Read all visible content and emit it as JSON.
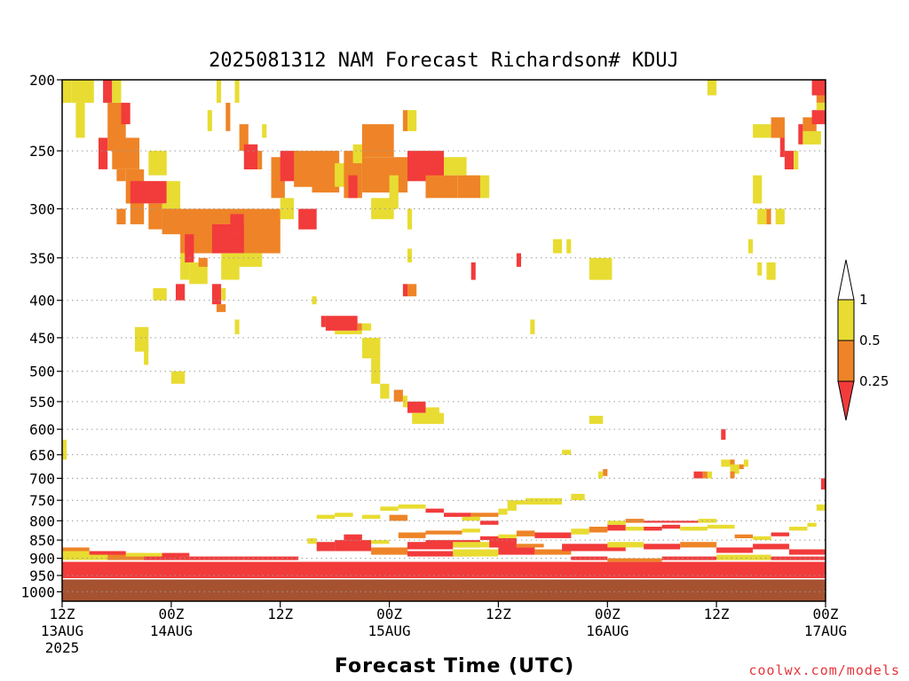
{
  "chart_data": {
    "type": "heatmap",
    "title": "2025081312 NAM Forecast Richardson# KDUJ",
    "xlabel": "Forecast Time (UTC)",
    "ylabel": "",
    "credit": "coolwx.com/models",
    "x_unit": "forecast hour",
    "xlim": [
      0,
      84
    ],
    "y_unit": "hPa",
    "y_scale": "log",
    "ylim": [
      1030,
      200
    ],
    "grid": "dotted horizontal lines at labeled pressure levels",
    "y_ticks": [
      200,
      250,
      300,
      350,
      400,
      450,
      500,
      550,
      600,
      650,
      700,
      750,
      800,
      850,
      900,
      950,
      1000
    ],
    "y_tick_labels": [
      "200",
      "250",
      "300",
      "350",
      "400",
      "450",
      "500",
      "550",
      "600",
      "650",
      "700",
      "750",
      "800",
      "850",
      "900",
      "950",
      "1000"
    ],
    "x_ticks": [
      {
        "hour": 0,
        "label1": "12Z",
        "label2": "13AUG",
        "label3": "2025"
      },
      {
        "hour": 12,
        "label1": "00Z",
        "label2": "14AUG",
        "label3": ""
      },
      {
        "hour": 24,
        "label1": "12Z",
        "label2": "",
        "label3": ""
      },
      {
        "hour": 36,
        "label1": "00Z",
        "label2": "15AUG",
        "label3": ""
      },
      {
        "hour": 48,
        "label1": "12Z",
        "label2": "",
        "label3": ""
      },
      {
        "hour": 60,
        "label1": "00Z",
        "label2": "16AUG",
        "label3": ""
      },
      {
        "hour": 72,
        "label1": "12Z",
        "label2": "",
        "label3": ""
      },
      {
        "hour": 84,
        "label1": "00Z",
        "label2": "17AUG",
        "label3": ""
      }
    ],
    "legend": {
      "placement": "right",
      "labels": [
        "1",
        "0.5",
        "0.25"
      ],
      "classes": [
        {
          "range": "> 1",
          "color": "#ffffff"
        },
        {
          "range": "0.5 - 1",
          "color": "#e8dc32"
        },
        {
          "range": "0.25 - 0.5",
          "color": "#ee8427"
        },
        {
          "range": "< 0.25",
          "color": "#f23b3b"
        }
      ]
    },
    "colors": {
      "1": "#e8dc32",
      "2": "#ee8427",
      "3": "#f23b3b",
      "ground": "#a65230"
    },
    "ground_top_hPa": 960,
    "cell_encoding": "[start_hour, end_hour, top_hPa, bottom_hPa, class]  class 1=0.5-1, 2=0.25-0.5, 3=<0.25",
    "cells": [
      [
        0,
        1,
        200,
        215,
        1
      ],
      [
        1,
        3.5,
        200,
        215,
        1
      ],
      [
        4.5,
        5.5,
        200,
        215,
        3
      ],
      [
        5.5,
        6.5,
        200,
        215,
        1
      ],
      [
        1.5,
        2.5,
        215,
        240,
        1
      ],
      [
        5,
        7,
        215,
        250,
        2
      ],
      [
        6.5,
        7.5,
        215,
        230,
        3
      ],
      [
        4,
        5,
        240,
        265,
        3
      ],
      [
        5.5,
        8.5,
        240,
        265,
        2
      ],
      [
        6,
        7,
        265,
        275,
        2
      ],
      [
        7,
        9,
        265,
        295,
        2
      ],
      [
        7.5,
        11.5,
        275,
        295,
        3
      ],
      [
        9.5,
        11.5,
        250,
        270,
        1
      ],
      [
        11.5,
        13,
        275,
        295,
        1
      ],
      [
        7.5,
        9,
        295,
        315,
        2
      ],
      [
        6,
        7,
        300,
        315,
        2
      ],
      [
        9.5,
        11,
        295,
        320,
        2
      ],
      [
        11,
        13,
        295,
        315,
        1
      ],
      [
        11,
        20.5,
        300,
        325,
        2
      ],
      [
        13,
        19,
        320,
        345,
        2
      ],
      [
        16.5,
        22,
        315,
        345,
        3
      ],
      [
        18.5,
        20,
        305,
        330,
        3
      ],
      [
        20,
        24,
        300,
        345,
        2
      ],
      [
        13,
        14,
        345,
        375,
        1
      ],
      [
        14,
        16,
        355,
        380,
        1
      ],
      [
        15,
        16,
        350,
        360,
        2
      ],
      [
        17.5,
        19.5,
        345,
        375,
        1
      ],
      [
        19.5,
        22,
        345,
        360,
        1
      ],
      [
        13.5,
        14.5,
        325,
        355,
        3
      ],
      [
        16,
        16.5,
        220,
        235,
        1
      ],
      [
        17,
        17.5,
        200,
        215,
        1
      ],
      [
        18,
        18.5,
        215,
        235,
        2
      ],
      [
        19,
        19.5,
        200,
        215,
        1
      ],
      [
        19.5,
        20.5,
        230,
        250,
        2
      ],
      [
        20,
        21.5,
        245,
        265,
        3
      ],
      [
        21.5,
        22,
        250,
        265,
        2
      ],
      [
        22,
        22.5,
        230,
        240,
        1
      ],
      [
        23,
        24.5,
        255,
        290,
        2
      ],
      [
        24,
        26,
        250,
        275,
        3
      ],
      [
        24,
        25.5,
        290,
        310,
        1
      ],
      [
        25.5,
        27.5,
        250,
        280,
        2
      ],
      [
        26,
        28,
        300,
        320,
        3
      ],
      [
        27.5,
        30.5,
        250,
        285,
        2
      ],
      [
        30,
        31.5,
        260,
        280,
        1
      ],
      [
        31,
        33,
        250,
        290,
        2
      ],
      [
        31.5,
        32.5,
        270,
        290,
        3
      ],
      [
        32,
        33.5,
        245,
        260,
        1
      ],
      [
        33,
        36.5,
        230,
        255,
        2
      ],
      [
        34,
        36.5,
        290,
        310,
        1
      ],
      [
        33,
        38,
        255,
        285,
        2
      ],
      [
        36,
        37,
        270,
        300,
        1
      ],
      [
        37.5,
        38,
        220,
        235,
        2
      ],
      [
        38,
        39,
        220,
        235,
        1
      ],
      [
        38,
        42,
        250,
        275,
        3
      ],
      [
        40,
        43.5,
        270,
        290,
        2
      ],
      [
        42,
        44.5,
        255,
        270,
        1
      ],
      [
        43.5,
        46,
        270,
        290,
        2
      ],
      [
        46,
        47,
        270,
        290,
        1
      ],
      [
        38,
        38.5,
        300,
        320,
        1
      ],
      [
        12.5,
        13.5,
        380,
        400,
        3
      ],
      [
        10,
        11.5,
        385,
        400,
        1
      ],
      [
        16.5,
        17.5,
        380,
        405,
        3
      ],
      [
        17.5,
        18,
        385,
        400,
        1
      ],
      [
        17,
        18,
        405,
        415,
        2
      ],
      [
        19,
        19.5,
        425,
        445,
        1
      ],
      [
        27.5,
        28,
        395,
        405,
        1
      ],
      [
        28.5,
        29,
        420,
        435,
        3
      ],
      [
        29,
        32.5,
        420,
        440,
        3
      ],
      [
        32.5,
        33,
        430,
        440,
        2
      ],
      [
        30,
        33,
        440,
        445,
        1
      ],
      [
        33,
        34,
        430,
        440,
        1
      ],
      [
        33,
        35,
        450,
        480,
        1
      ],
      [
        34,
        35,
        480,
        520,
        1
      ],
      [
        35,
        36,
        520,
        545,
        1
      ],
      [
        36.5,
        37.5,
        530,
        550,
        2
      ],
      [
        37.5,
        38,
        540,
        560,
        1
      ],
      [
        38,
        40,
        550,
        570,
        3
      ],
      [
        38.5,
        42,
        570,
        590,
        1
      ],
      [
        40,
        41.5,
        560,
        580,
        1
      ],
      [
        8,
        9.5,
        435,
        470,
        1
      ],
      [
        9,
        9.5,
        470,
        490,
        1
      ],
      [
        12,
        13.5,
        500,
        520,
        1
      ],
      [
        37.5,
        38,
        380,
        395,
        3
      ],
      [
        38,
        39,
        380,
        395,
        2
      ],
      [
        38,
        38.5,
        340,
        355,
        1
      ],
      [
        45,
        45.5,
        355,
        375,
        3
      ],
      [
        50,
        50.5,
        345,
        360,
        3
      ],
      [
        51.5,
        52,
        425,
        445,
        1
      ],
      [
        54,
        55,
        330,
        345,
        1
      ],
      [
        55.5,
        56,
        330,
        345,
        1
      ],
      [
        58,
        60.5,
        350,
        375,
        1
      ],
      [
        58,
        59.5,
        575,
        590,
        1
      ],
      [
        72.5,
        73,
        600,
        620,
        3
      ],
      [
        55,
        56,
        640,
        650,
        1
      ],
      [
        56,
        57.5,
        735,
        750,
        1
      ],
      [
        59,
        59.5,
        685,
        700,
        1
      ],
      [
        59.5,
        60,
        680,
        695,
        2
      ],
      [
        69.5,
        70.5,
        685,
        700,
        3
      ],
      [
        70.5,
        71,
        685,
        700,
        2
      ],
      [
        71,
        71.5,
        685,
        700,
        1
      ],
      [
        72.5,
        73.5,
        660,
        675,
        1
      ],
      [
        73.5,
        74,
        660,
        675,
        2
      ],
      [
        73.5,
        74.5,
        670,
        690,
        1
      ],
      [
        74.5,
        75,
        670,
        680,
        2
      ],
      [
        75,
        75.5,
        660,
        675,
        1
      ],
      [
        73.5,
        74,
        685,
        700,
        2
      ],
      [
        83.5,
        84,
        700,
        725,
        3
      ],
      [
        83,
        84,
        760,
        775,
        1
      ],
      [
        0,
        0.5,
        620,
        640,
        1
      ],
      [
        0,
        0.5,
        640,
        660,
        1
      ],
      [
        75.5,
        76,
        330,
        345,
        1
      ],
      [
        76.5,
        77.5,
        300,
        315,
        1
      ],
      [
        78.5,
        79.5,
        300,
        315,
        1
      ],
      [
        77.5,
        78,
        300,
        315,
        2
      ],
      [
        76,
        78,
        230,
        240,
        1
      ],
      [
        78.5,
        79.5,
        230,
        240,
        1
      ],
      [
        76,
        77,
        270,
        295,
        1
      ],
      [
        78,
        79.5,
        225,
        240,
        2
      ],
      [
        79,
        79.5,
        240,
        255,
        3
      ],
      [
        79.5,
        80.5,
        250,
        265,
        3
      ],
      [
        80.5,
        81,
        250,
        265,
        1
      ],
      [
        81,
        81.5,
        230,
        245,
        3
      ],
      [
        81.5,
        83.5,
        235,
        245,
        1
      ],
      [
        81.5,
        83,
        225,
        235,
        2
      ],
      [
        82.5,
        84,
        200,
        210,
        3
      ],
      [
        83,
        84,
        210,
        215,
        2
      ],
      [
        82.5,
        84,
        220,
        230,
        3
      ],
      [
        83,
        84,
        215,
        220,
        1
      ],
      [
        71,
        72,
        200,
        210,
        1
      ],
      [
        76.5,
        77,
        355,
        370,
        1
      ],
      [
        77.5,
        78.5,
        355,
        375,
        1
      ],
      [
        0,
        84,
        910,
        960,
        3
      ],
      [
        0,
        84,
        930,
        960,
        3
      ],
      [
        0,
        5,
        880,
        905,
        1
      ],
      [
        5,
        9,
        885,
        905,
        2
      ],
      [
        9,
        13,
        890,
        905,
        3
      ],
      [
        13,
        20,
        895,
        905,
        3
      ],
      [
        20,
        26,
        895,
        905,
        3
      ],
      [
        0,
        3,
        870,
        880,
        2
      ],
      [
        3,
        7,
        880,
        890,
        3
      ],
      [
        7,
        11,
        885,
        895,
        1
      ],
      [
        11,
        14,
        885,
        895,
        3
      ],
      [
        28,
        30,
        855,
        880,
        3
      ],
      [
        30,
        34,
        850,
        880,
        3
      ],
      [
        34,
        38,
        870,
        890,
        2
      ],
      [
        27,
        28,
        845,
        860,
        1
      ],
      [
        31,
        33,
        835,
        850,
        3
      ],
      [
        34,
        36,
        850,
        860,
        1
      ],
      [
        38,
        43,
        855,
        875,
        3
      ],
      [
        40,
        46,
        850,
        870,
        3
      ],
      [
        43,
        47,
        855,
        870,
        1
      ],
      [
        47,
        50,
        845,
        870,
        3
      ],
      [
        50,
        53,
        860,
        870,
        2
      ],
      [
        38,
        45,
        880,
        895,
        3
      ],
      [
        43,
        48,
        875,
        895,
        1
      ],
      [
        48,
        52,
        870,
        890,
        3
      ],
      [
        52,
        56,
        875,
        890,
        2
      ],
      [
        55,
        62,
        860,
        880,
        3
      ],
      [
        60,
        64,
        855,
        870,
        1
      ],
      [
        64,
        68,
        860,
        875,
        3
      ],
      [
        68,
        72,
        855,
        870,
        2
      ],
      [
        72,
        76,
        870,
        885,
        3
      ],
      [
        76,
        80,
        860,
        875,
        3
      ],
      [
        80,
        84,
        875,
        890,
        3
      ],
      [
        56,
        60,
        895,
        905,
        3
      ],
      [
        60,
        66,
        900,
        910,
        2
      ],
      [
        66,
        72,
        895,
        905,
        3
      ],
      [
        72,
        78,
        890,
        905,
        1
      ],
      [
        78,
        84,
        895,
        905,
        3
      ],
      [
        46,
        48,
        840,
        850,
        3
      ],
      [
        48,
        50,
        835,
        845,
        1
      ],
      [
        50,
        52,
        825,
        840,
        2
      ],
      [
        52,
        56,
        830,
        845,
        3
      ],
      [
        56,
        58,
        820,
        835,
        1
      ],
      [
        58,
        60,
        815,
        830,
        2
      ],
      [
        60,
        62,
        810,
        825,
        3
      ],
      [
        62,
        64,
        815,
        825,
        1
      ],
      [
        64,
        66,
        815,
        825,
        3
      ],
      [
        66,
        68,
        810,
        820,
        3
      ],
      [
        68,
        71,
        815,
        825,
        1
      ],
      [
        71,
        74,
        810,
        820,
        1
      ],
      [
        74,
        76,
        835,
        845,
        2
      ],
      [
        76,
        78,
        840,
        850,
        1
      ],
      [
        78,
        80,
        830,
        840,
        3
      ],
      [
        80,
        82,
        815,
        825,
        1
      ],
      [
        82,
        83,
        805,
        815,
        1
      ],
      [
        37,
        40,
        830,
        845,
        2
      ],
      [
        40,
        44,
        825,
        835,
        2
      ],
      [
        44,
        46,
        820,
        830,
        1
      ],
      [
        28,
        30,
        785,
        795,
        1
      ],
      [
        30,
        32,
        780,
        790,
        1
      ],
      [
        35,
        37,
        765,
        775,
        1
      ],
      [
        37,
        40,
        760,
        770,
        1
      ],
      [
        40,
        42,
        770,
        780,
        3
      ],
      [
        42,
        45,
        780,
        790,
        3
      ],
      [
        45,
        48,
        780,
        790,
        2
      ],
      [
        48,
        49,
        770,
        785,
        1
      ],
      [
        49,
        50,
        760,
        775,
        1
      ],
      [
        49,
        51,
        750,
        760,
        1
      ],
      [
        51,
        55,
        745,
        760,
        1
      ],
      [
        33,
        35,
        785,
        795,
        1
      ],
      [
        36,
        38,
        785,
        800,
        2
      ],
      [
        44,
        46,
        790,
        800,
        1
      ],
      [
        46,
        48,
        800,
        810,
        3
      ],
      [
        60,
        62,
        800,
        810,
        1
      ],
      [
        62,
        64,
        795,
        805,
        2
      ],
      [
        64,
        67,
        800,
        805,
        3
      ],
      [
        67,
        70,
        800,
        805,
        3
      ],
      [
        70,
        72,
        795,
        805,
        1
      ]
    ]
  }
}
